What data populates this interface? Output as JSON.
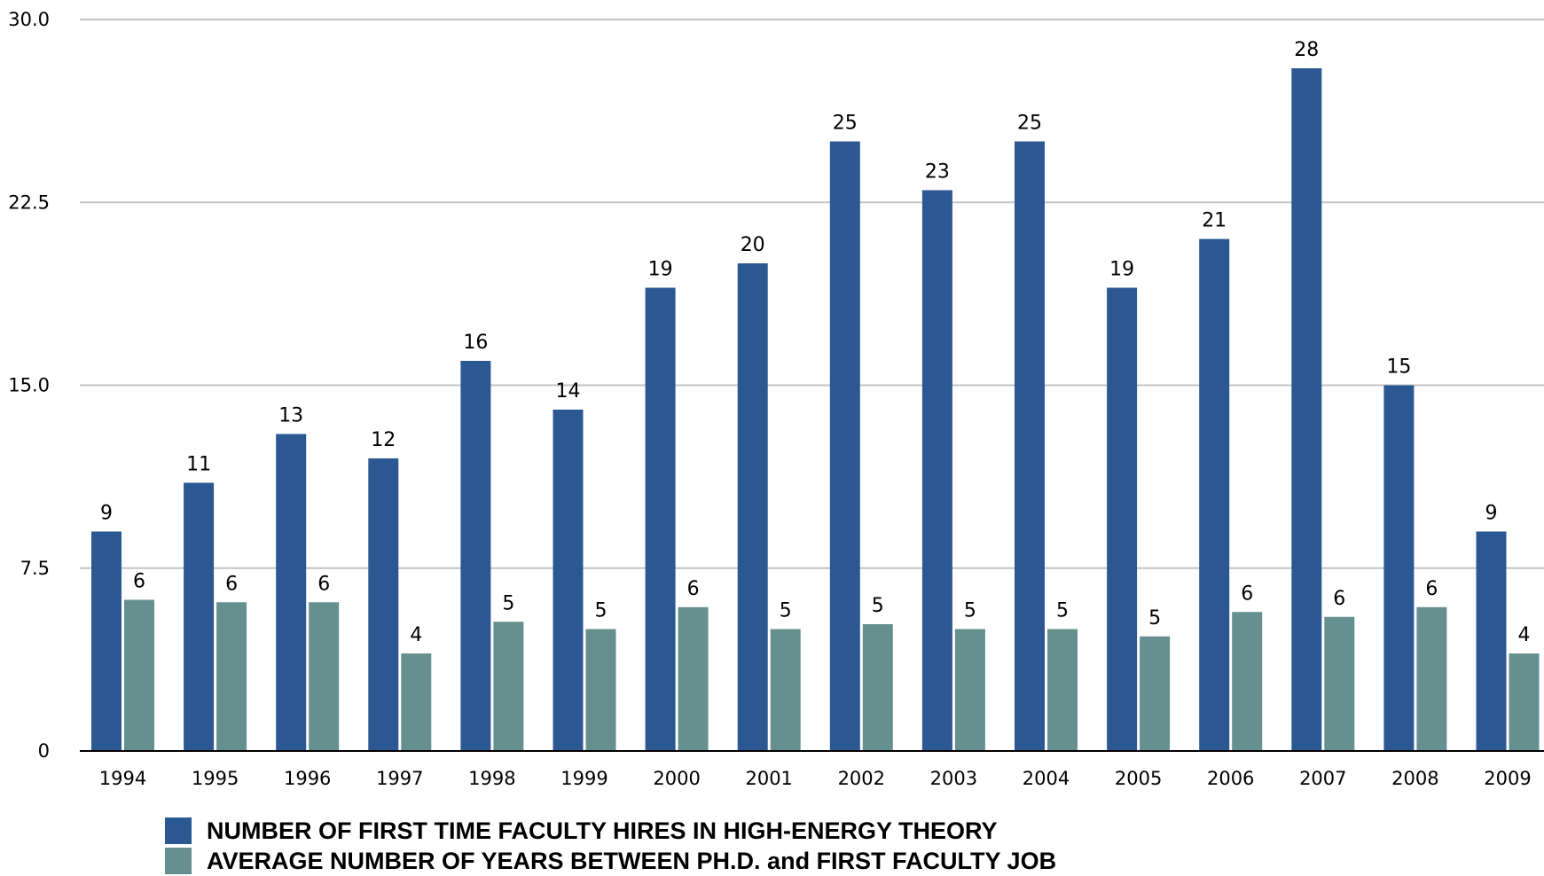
{
  "chart_data": {
    "type": "bar",
    "categories": [
      "1994",
      "1995",
      "1996",
      "1997",
      "1998",
      "1999",
      "2000",
      "2001",
      "2002",
      "2003",
      "2004",
      "2005",
      "2006",
      "2007",
      "2008",
      "2009"
    ],
    "series": [
      {
        "name": "NUMBER OF FIRST TIME FACULTY HIRES IN HIGH-ENERGY THEORY",
        "values": [
          9,
          11,
          13,
          12,
          16,
          14,
          19,
          20,
          25,
          23,
          25,
          19,
          21,
          28,
          15,
          9
        ],
        "labels": [
          "9",
          "11",
          "13",
          "12",
          "16",
          "14",
          "19",
          "20",
          "25",
          "23",
          "25",
          "19",
          "21",
          "28",
          "15",
          "9"
        ],
        "color": "#2b5792"
      },
      {
        "name": "AVERAGE NUMBER OF YEARS BETWEEN PH.D. and FIRST FACULTY JOB",
        "values": [
          6.2,
          6.1,
          6.1,
          4.0,
          5.3,
          5.0,
          5.9,
          5.0,
          5.2,
          5.0,
          5.0,
          4.7,
          5.7,
          5.5,
          5.9,
          4.0
        ],
        "labels": [
          "6",
          "6",
          "6",
          "4",
          "5",
          "5",
          "6",
          "5",
          "5",
          "5",
          "5",
          "5",
          "6",
          "6",
          "6",
          "4"
        ],
        "color": "#66908f"
      }
    ],
    "ylim": [
      0,
      30
    ],
    "yticks": [
      "0",
      "7.5",
      "15.0",
      "22.5",
      "30.0"
    ],
    "ytick_values": [
      0,
      7.5,
      15,
      22.5,
      30
    ],
    "grid": true,
    "legend_position": "bottom-left"
  }
}
